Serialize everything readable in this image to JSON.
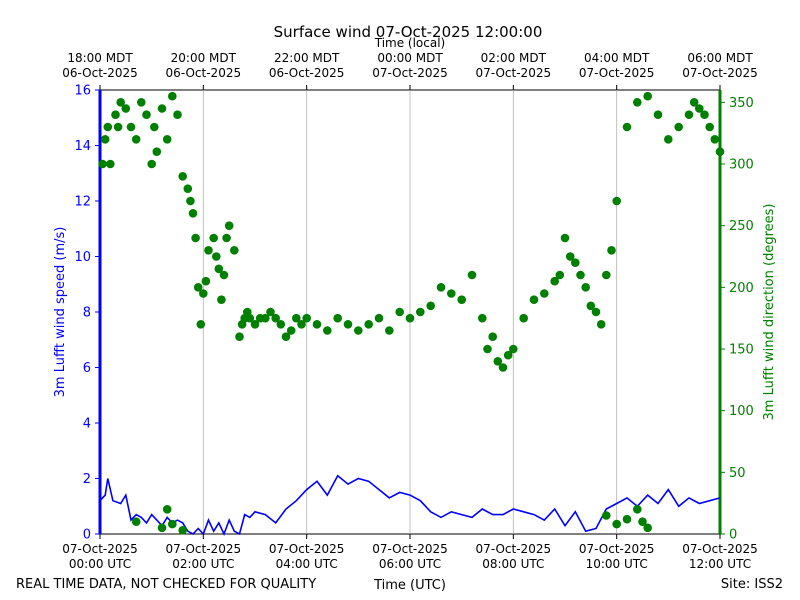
{
  "chart_data": {
    "type": "line+scatter",
    "title": "Surface wind 07-Oct-2025 12:00:00",
    "top_axis_label": "Time (local)",
    "xlabel": "Time (UTC)",
    "ylabel_left": "3m Lufft wind speed (m/s)",
    "ylabel_right": "3m Lufft wind direction (degrees)",
    "footer_left": "REAL TIME DATA, NOT CHECKED FOR QUALITY",
    "footer_right": "Site: ISS2",
    "x_range_hours": [
      0,
      12
    ],
    "ylim_left": [
      0,
      16
    ],
    "ylim_right": [
      0,
      360
    ],
    "left_ticks": [
      "0",
      "2",
      "4",
      "6",
      "8",
      "10",
      "12",
      "14",
      "16"
    ],
    "right_ticks": [
      "0",
      "50",
      "100",
      "150",
      "200",
      "250",
      "300",
      "350"
    ],
    "bottom_ticks": [
      {
        "line1": "07-Oct-2025",
        "line2": "00:00 UTC"
      },
      {
        "line1": "07-Oct-2025",
        "line2": "02:00 UTC"
      },
      {
        "line1": "07-Oct-2025",
        "line2": "04:00 UTC"
      },
      {
        "line1": "07-Oct-2025",
        "line2": "06:00 UTC"
      },
      {
        "line1": "07-Oct-2025",
        "line2": "08:00 UTC"
      },
      {
        "line1": "07-Oct-2025",
        "line2": "10:00 UTC"
      },
      {
        "line1": "07-Oct-2025",
        "line2": "12:00 UTC"
      }
    ],
    "top_ticks": [
      {
        "line1": "18:00 MDT",
        "line2": "06-Oct-2025"
      },
      {
        "line1": "20:00 MDT",
        "line2": "06-Oct-2025"
      },
      {
        "line1": "22:00 MDT",
        "line2": "06-Oct-2025"
      },
      {
        "line1": "00:00 MDT",
        "line2": "07-Oct-2025"
      },
      {
        "line1": "02:00 MDT",
        "line2": "07-Oct-2025"
      },
      {
        "line1": "04:00 MDT",
        "line2": "07-Oct-2025"
      },
      {
        "line1": "06:00 MDT",
        "line2": "07-Oct-2025"
      }
    ],
    "series": [
      {
        "name": "3m Lufft wind speed",
        "axis": "left",
        "color": "#0000ff",
        "style": "line",
        "x": [
          0.0,
          0.1,
          0.15,
          0.25,
          0.4,
          0.5,
          0.6,
          0.7,
          0.8,
          0.9,
          1.0,
          1.1,
          1.2,
          1.3,
          1.4,
          1.5,
          1.6,
          1.7,
          1.8,
          1.9,
          2.0,
          2.1,
          2.2,
          2.3,
          2.4,
          2.5,
          2.6,
          2.7,
          2.8,
          2.9,
          3.0,
          3.2,
          3.4,
          3.6,
          3.8,
          4.0,
          4.2,
          4.4,
          4.6,
          4.8,
          5.0,
          5.2,
          5.4,
          5.6,
          5.8,
          6.0,
          6.2,
          6.4,
          6.6,
          6.8,
          7.0,
          7.2,
          7.4,
          7.6,
          7.8,
          8.0,
          8.2,
          8.4,
          8.6,
          8.8,
          9.0,
          9.2,
          9.4,
          9.6,
          9.8,
          10.0,
          10.2,
          10.4,
          10.6,
          10.8,
          11.0,
          11.2,
          11.4,
          11.6,
          11.8,
          12.0
        ],
        "values": [
          1.2,
          1.4,
          2.0,
          1.2,
          1.1,
          1.4,
          0.5,
          0.7,
          0.6,
          0.4,
          0.7,
          0.5,
          0.3,
          0.6,
          0.4,
          0.5,
          0.4,
          0.1,
          0.0,
          0.2,
          0.0,
          0.5,
          0.1,
          0.4,
          0.0,
          0.5,
          0.1,
          0.0,
          0.7,
          0.6,
          0.8,
          0.7,
          0.4,
          0.9,
          1.2,
          1.6,
          1.9,
          1.4,
          2.1,
          1.8,
          2.0,
          1.9,
          1.6,
          1.3,
          1.5,
          1.4,
          1.2,
          0.8,
          0.6,
          0.8,
          0.7,
          0.6,
          0.9,
          0.7,
          0.7,
          0.9,
          0.8,
          0.7,
          0.5,
          0.9,
          0.3,
          0.8,
          0.1,
          0.2,
          0.9,
          1.1,
          1.3,
          1.0,
          1.4,
          1.1,
          1.6,
          1.0,
          1.3,
          1.1,
          1.2,
          1.3
        ]
      },
      {
        "name": "3m Lufft wind direction",
        "axis": "right",
        "color": "#008000",
        "style": "scatter",
        "x": [
          0.05,
          0.1,
          0.15,
          0.2,
          0.3,
          0.35,
          0.4,
          0.5,
          0.6,
          0.7,
          0.8,
          0.9,
          1.0,
          1.05,
          1.1,
          1.2,
          1.3,
          1.4,
          1.5,
          1.6,
          1.7,
          1.75,
          1.8,
          1.85,
          1.9,
          1.95,
          2.0,
          2.05,
          2.1,
          2.2,
          2.25,
          2.3,
          2.35,
          2.4,
          2.45,
          2.5,
          2.6,
          2.7,
          2.75,
          2.8,
          2.85,
          2.9,
          3.0,
          3.1,
          3.2,
          3.3,
          3.4,
          3.5,
          3.6,
          3.7,
          3.8,
          3.9,
          4.0,
          4.2,
          4.4,
          4.6,
          4.8,
          5.0,
          5.2,
          5.4,
          5.6,
          5.8,
          6.0,
          6.2,
          6.4,
          6.6,
          6.8,
          7.0,
          7.2,
          7.4,
          7.5,
          7.6,
          7.7,
          7.8,
          7.9,
          8.0,
          8.2,
          8.4,
          8.6,
          8.8,
          8.9,
          9.0,
          9.1,
          9.2,
          9.3,
          9.4,
          9.5,
          9.6,
          9.7,
          9.8,
          9.9,
          10.0,
          10.2,
          10.4,
          10.6,
          10.8,
          11.0,
          11.2,
          11.4,
          11.5,
          11.6,
          11.7,
          11.8,
          11.9,
          12.0,
          0.7,
          1.2,
          1.3,
          1.4,
          1.6,
          9.8,
          10.0,
          10.2,
          10.4,
          10.5,
          10.6
        ],
        "values": [
          300,
          320,
          330,
          300,
          340,
          330,
          350,
          345,
          330,
          320,
          350,
          340,
          300,
          330,
          310,
          345,
          320,
          355,
          340,
          290,
          280,
          270,
          260,
          240,
          200,
          170,
          195,
          205,
          230,
          240,
          225,
          215,
          190,
          210,
          240,
          250,
          230,
          160,
          170,
          175,
          180,
          175,
          170,
          175,
          175,
          180,
          175,
          170,
          160,
          165,
          175,
          170,
          175,
          170,
          165,
          175,
          170,
          165,
          170,
          175,
          165,
          180,
          175,
          180,
          185,
          200,
          195,
          190,
          210,
          175,
          150,
          160,
          140,
          135,
          145,
          150,
          175,
          190,
          195,
          205,
          210,
          240,
          225,
          220,
          210,
          200,
          185,
          180,
          170,
          210,
          230,
          270,
          330,
          350,
          355,
          340,
          320,
          330,
          340,
          350,
          345,
          340,
          330,
          320,
          310,
          10,
          5,
          20,
          8,
          3,
          15,
          8,
          12,
          20,
          10,
          5
        ]
      }
    ]
  }
}
